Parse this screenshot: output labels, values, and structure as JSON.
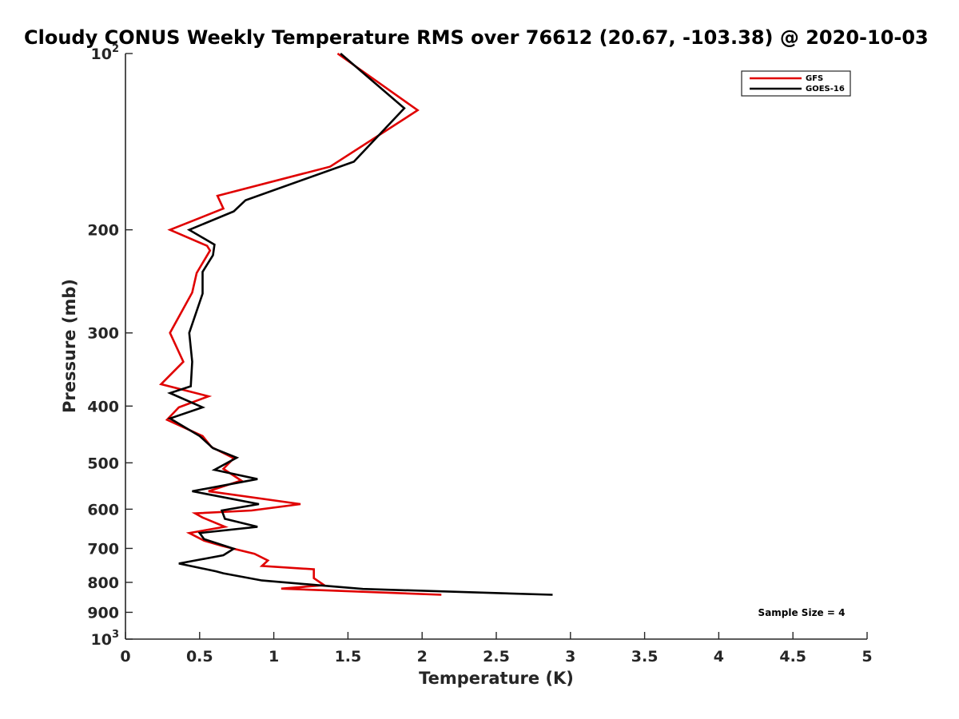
{
  "chart_data": {
    "type": "line",
    "title": "Cloudy CONUS Weekly Temperature RMS over 76612 (20.67, -103.38) @ 2020-10-03",
    "xlabel": "Temperature (K)",
    "ylabel": "Pressure (mb)",
    "xlim": [
      0,
      5
    ],
    "ylim": [
      100,
      1000
    ],
    "yscale": "log",
    "y_reversed": true,
    "xticks": [
      "0",
      "0.5",
      "1",
      "1.5",
      "2",
      "2.5",
      "3",
      "3.5",
      "4",
      "4.5",
      "5"
    ],
    "xtick_values": [
      0,
      0.5,
      1,
      1.5,
      2,
      2.5,
      3,
      3.5,
      4,
      4.5,
      5
    ],
    "yticks": [
      {
        "value": 100,
        "base": "10",
        "exp": "2"
      },
      {
        "value": 200,
        "label": "200"
      },
      {
        "value": 300,
        "label": "300"
      },
      {
        "value": 400,
        "label": "400"
      },
      {
        "value": 500,
        "label": "500"
      },
      {
        "value": 600,
        "label": "600"
      },
      {
        "value": 700,
        "label": "700"
      },
      {
        "value": 800,
        "label": "800"
      },
      {
        "value": 900,
        "label": "900"
      },
      {
        "value": 1000,
        "base": "10",
        "exp": "3"
      }
    ],
    "legend_position": "top-right",
    "series": [
      {
        "name": "GFS",
        "color": "#e00000",
        "x": [
          1.43,
          1.97,
          1.38,
          0.62,
          0.66,
          0.3,
          0.55,
          0.57,
          0.48,
          0.45,
          0.3,
          0.39,
          0.24,
          0.56,
          0.36,
          0.28,
          0.52,
          0.58,
          0.73,
          0.66,
          0.78,
          0.56,
          1.18,
          0.85,
          0.47,
          0.52,
          0.67,
          0.43,
          0.53,
          0.65,
          0.87,
          0.96,
          0.92,
          1.27,
          1.27,
          1.34,
          1.05,
          2.13
        ],
        "y": [
          100,
          125,
          156,
          175,
          184,
          200,
          213,
          217,
          237,
          256,
          300,
          336,
          367,
          385,
          402,
          422,
          450,
          470,
          491,
          512,
          536,
          559,
          588,
          603,
          610,
          620,
          643,
          659,
          679,
          693,
          715,
          734,
          750,
          760,
          787,
          809,
          820,
          840
        ]
      },
      {
        "name": "GOES-16",
        "color": "#000000",
        "x": [
          1.45,
          1.88,
          1.54,
          0.81,
          0.73,
          0.43,
          0.6,
          0.59,
          0.52,
          0.52,
          0.43,
          0.45,
          0.44,
          0.3,
          0.52,
          0.3,
          0.5,
          0.59,
          0.75,
          0.6,
          0.89,
          0.45,
          0.9,
          0.65,
          0.67,
          0.89,
          0.5,
          0.53,
          0.73,
          0.66,
          0.36,
          0.61,
          0.66,
          0.92,
          1.6,
          2.88
        ],
        "y": [
          100,
          124,
          153,
          178,
          186,
          200,
          212,
          221,
          236,
          257,
          300,
          336,
          370,
          380,
          402,
          420,
          450,
          472,
          490,
          514,
          533,
          559,
          588,
          603,
          623,
          643,
          659,
          675,
          701,
          719,
          743,
          766,
          772,
          794,
          821,
          840
        ]
      }
    ],
    "annotation": "Sample Size = 4"
  }
}
